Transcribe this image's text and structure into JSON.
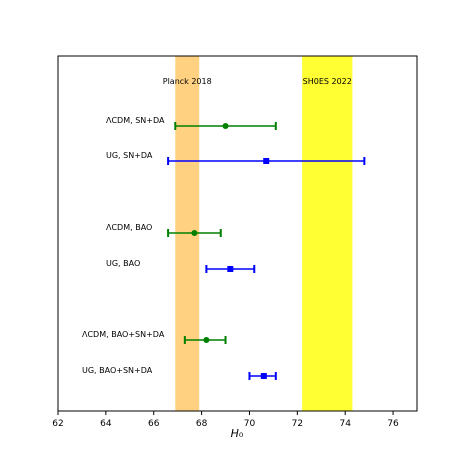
{
  "chart_data": {
    "type": "scatter",
    "title": "",
    "xlabel": "H₀",
    "ylabel": "",
    "xlim": [
      62,
      77
    ],
    "xticks": [
      "62",
      "64",
      "66",
      "68",
      "70",
      "72",
      "74",
      "76"
    ],
    "grid": false,
    "bands": [
      {
        "name": "Planck 2018",
        "x_min": 66.9,
        "x_max": 67.9,
        "color": "#ffd180"
      },
      {
        "name": "SH0ES 2022",
        "x_min": 72.2,
        "x_max": 74.3,
        "color": "#ffff33"
      }
    ],
    "measurements": [
      {
        "label": "ΛCDM, SN+DA",
        "value": 69.0,
        "low": 66.9,
        "high": 71.1,
        "color": "#008000",
        "marker": "circle"
      },
      {
        "label": "UG, SN+DA",
        "value": 70.7,
        "low": 66.6,
        "high": 74.8,
        "color": "#0000ff",
        "marker": "square"
      },
      {
        "label": "ΛCDM, BAO",
        "value": 67.7,
        "low": 66.6,
        "high": 68.8,
        "color": "#008000",
        "marker": "circle"
      },
      {
        "label": "UG, BAO",
        "value": 69.2,
        "low": 68.2,
        "high": 70.2,
        "color": "#0000ff",
        "marker": "square"
      },
      {
        "label": "ΛCDM, BAO+SN+DA",
        "value": 68.2,
        "low": 67.3,
        "high": 69.0,
        "color": "#008000",
        "marker": "circle"
      },
      {
        "label": "UG, BAO+SN+DA",
        "value": 70.6,
        "low": 70.0,
        "high": 71.1,
        "color": "#0000ff",
        "marker": "square"
      }
    ]
  }
}
